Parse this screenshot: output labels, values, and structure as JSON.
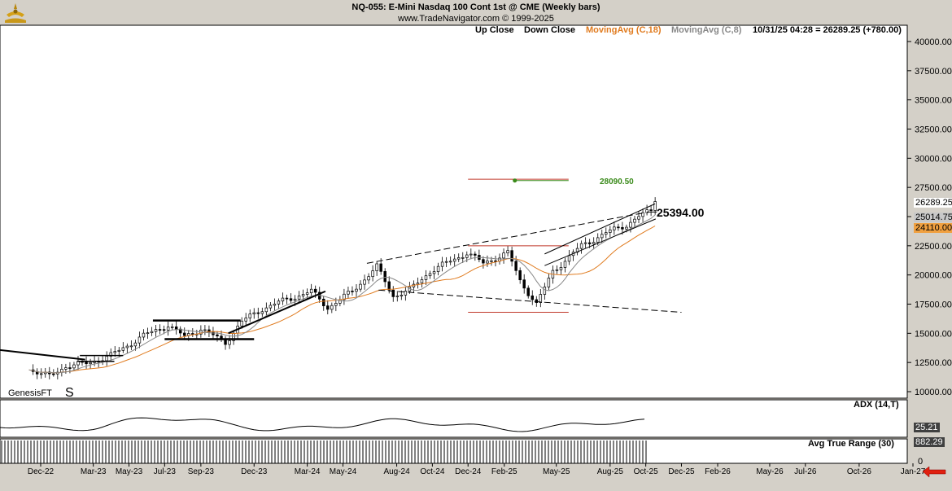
{
  "header": {
    "title": "NQ-055:  E-Mini Nasdaq 100 Cont 1st @ CME  (Weekly bars)",
    "subtitle": "www.TradeNavigator.com © 1999-2025"
  },
  "legend": {
    "up_close": "Up Close",
    "down_close": "Down Close",
    "ma18": "MovingAvg (C,18)",
    "ma8": "MovingAvg (C,8)",
    "last_quote": "10/31/25 04:28 = 26289.25 (+780.00)"
  },
  "colors": {
    "background": "#ffffff",
    "panel_bg": "#d4d0c8",
    "ma18": "#e07b1f",
    "ma8": "#888888",
    "target": "#3a8a1a",
    "support": "#c0392b",
    "arrow": "#e02010"
  },
  "annotations": {
    "target_label": "28090.50",
    "level_label": "25394.00",
    "watermark": "GenesisFT",
    "s_marker": "S"
  },
  "price_tags": {
    "last": "26289.25",
    "ma8": "25014.75",
    "ma18": "24110.00"
  },
  "indicators": {
    "adx_label": "ADX (14,T)",
    "adx_value": "25.21",
    "atr_label": "Avg True Range (30)",
    "atr_value": "882.29",
    "atr_zero": "0"
  },
  "chart_data": {
    "type": "candlestick",
    "title": "NQ-055:  E-Mini Nasdaq 100 Cont 1st @ CME  (Weekly bars)",
    "ylim": [
      9500,
      41300
    ],
    "y_ticks": [
      "40000.00",
      "37500.00",
      "35000.00",
      "32500.00",
      "30000.00",
      "27500.00",
      "25000.00",
      "22500.00",
      "20000.00",
      "17500.00",
      "15000.00",
      "12500.00",
      "10000.00"
    ],
    "x_ticks": [
      "Dec-22",
      "Mar-23",
      "May-23",
      "Jul-23",
      "Sep-23",
      "Dec-23",
      "Mar-24",
      "May-24",
      "Aug-24",
      "Oct-24",
      "Dec-24",
      "Feb-25",
      "May-25",
      "Aug-25",
      "Oct-25",
      "Dec-25",
      "Feb-26",
      "May-26",
      "Jul-26",
      "Oct-26",
      "Jan-27"
    ],
    "anchors": [
      [
        "2022-11-25",
        11950
      ],
      [
        "2022-12-30",
        11300
      ],
      [
        "2023-01-27",
        12200
      ],
      [
        "2023-03-03",
        12400
      ],
      [
        "2023-04-14",
        13100
      ],
      [
        "2023-06-09",
        14800
      ],
      [
        "2023-07-21",
        15700
      ],
      [
        "2023-08-18",
        14700
      ],
      [
        "2023-09-15",
        15400
      ],
      [
        "2023-10-27",
        14200
      ],
      [
        "2023-11-24",
        16000
      ],
      [
        "2023-12-29",
        17100
      ],
      [
        "2024-02-09",
        17900
      ],
      [
        "2024-03-22",
        18600
      ],
      [
        "2024-04-19",
        17200
      ],
      [
        "2024-05-31",
        18600
      ],
      [
        "2024-07-12",
        20700
      ],
      [
        "2024-08-09",
        18200
      ],
      [
        "2024-09-06",
        18700
      ],
      [
        "2024-10-11",
        20300
      ],
      [
        "2024-12-13",
        21900
      ],
      [
        "2025-01-10",
        21000
      ],
      [
        "2025-02-21",
        21900
      ],
      [
        "2025-03-14",
        19500
      ],
      [
        "2025-04-11",
        17500
      ],
      [
        "2025-05-09",
        20300
      ],
      [
        "2025-06-27",
        22500
      ],
      [
        "2025-08-08",
        23600
      ],
      [
        "2025-09-12",
        24300
      ],
      [
        "2025-10-03",
        25000
      ],
      [
        "2025-10-24",
        25509
      ],
      [
        "2025-10-31",
        26289
      ]
    ],
    "last_close": 26289.25,
    "target": 28090.5,
    "level": 25394.0,
    "adx_last": 25.21,
    "atr_last": 882.29
  }
}
